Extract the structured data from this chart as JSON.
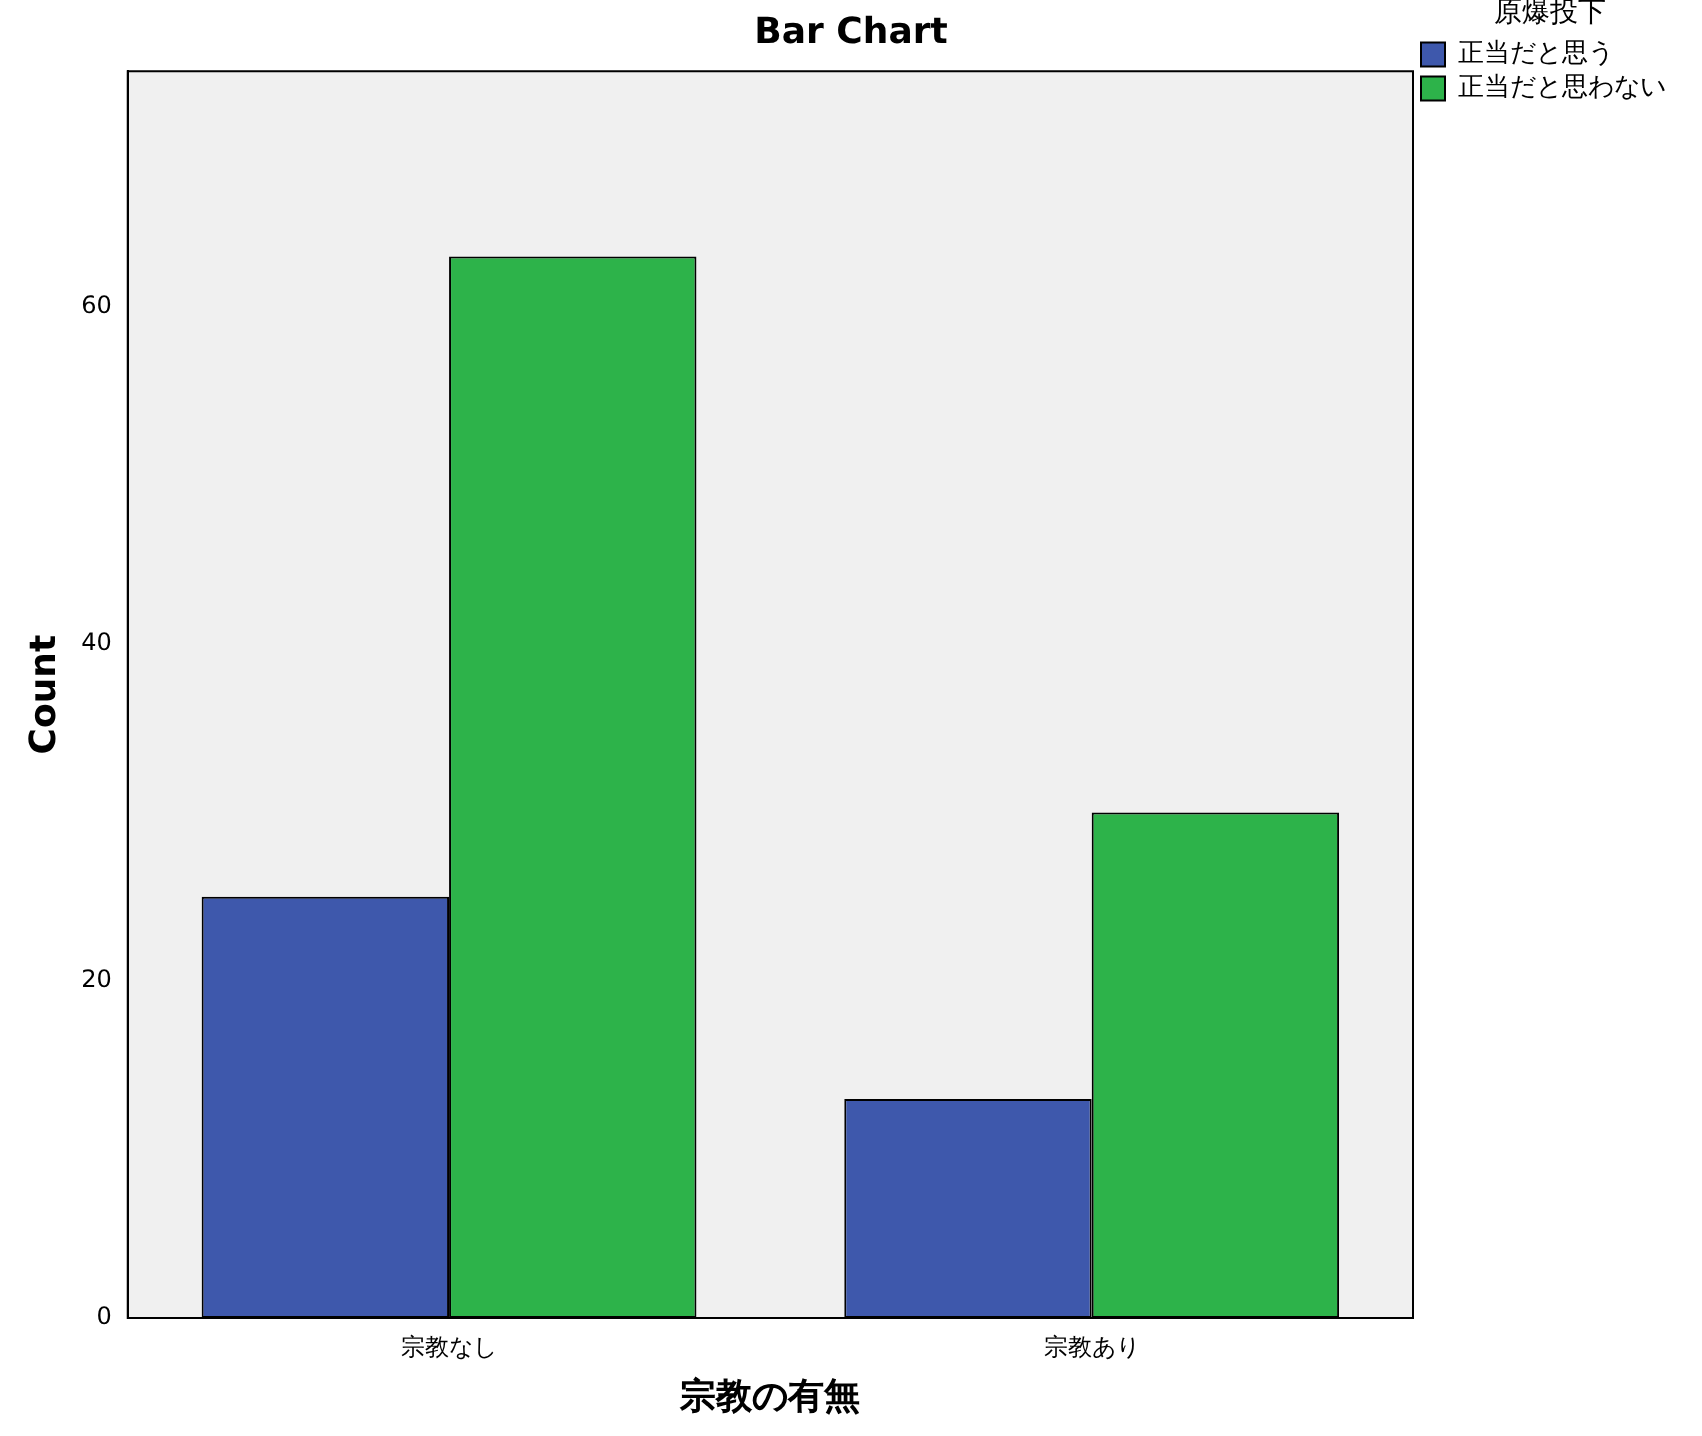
{
  "chart_data": {
    "type": "bar",
    "title": "Bar Chart",
    "xlabel": "宗教の有無",
    "ylabel": "Count",
    "legend_title": "原爆投下",
    "categories": [
      "宗教なし",
      "宗教あり"
    ],
    "series": [
      {
        "name": "正当だと思う",
        "color": "#3e58ac",
        "values": [
          25,
          13
        ]
      },
      {
        "name": "正当だと思わない",
        "color": "#2db34a",
        "values": [
          63,
          30
        ]
      }
    ],
    "ylim": [
      0,
      74
    ],
    "yticks": [
      0,
      20,
      40,
      60
    ],
    "grid": false,
    "legend": "top right"
  }
}
